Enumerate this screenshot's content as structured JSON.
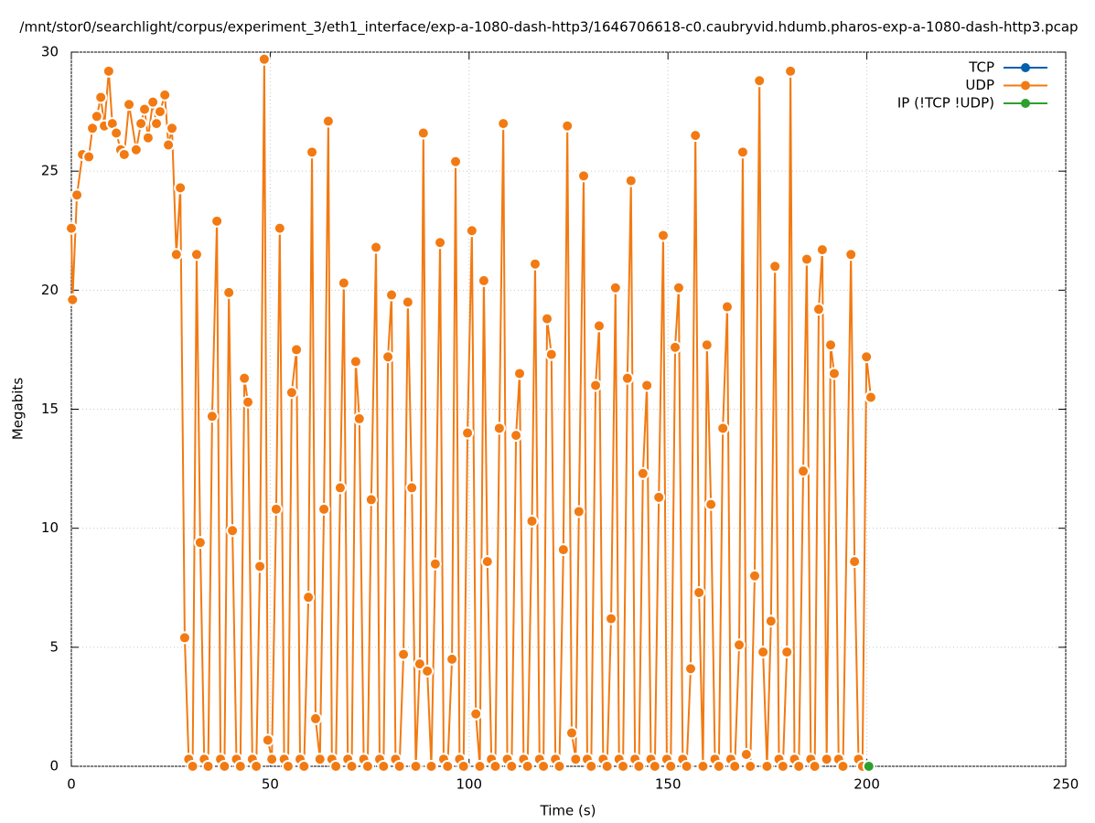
{
  "chart_data": {
    "type": "line",
    "title": "/mnt/stor0/searchlight/corpus/experiment_3/eth1_interface/exp-a-1080-dash-http3/1646706618-c0.caubryvid.hdumb.pharos-exp-a-1080-dash-http3.pcap",
    "xlabel": "Time (s)",
    "ylabel": "Megabits",
    "xlim": [
      0,
      250
    ],
    "xticks": [
      0,
      50,
      100,
      150,
      200,
      250
    ],
    "ylim": [
      0,
      30
    ],
    "yticks": [
      0,
      5,
      10,
      15,
      20,
      25,
      30
    ],
    "grid": true,
    "legend": "top-right",
    "series": [
      {
        "name": "TCP",
        "color": "#0060ad",
        "x": [],
        "values": []
      },
      {
        "name": "UDP",
        "color": "#f27a12",
        "x": [
          0,
          0.3,
          1.4,
          2.8,
          4.4,
          5.3,
          6.4,
          7.4,
          8.3,
          9.4,
          10.3,
          11.3,
          12.4,
          13.3,
          14.5,
          16.3,
          17.5,
          18.4,
          19.3,
          20.5,
          21.4,
          22.3,
          23.5,
          24.4,
          25.3,
          26.4,
          27.4,
          28.5,
          29.5,
          30.5,
          31.5,
          32.4,
          33.4,
          34.4,
          35.4,
          36.6,
          37.5,
          38.5,
          39.6,
          40.5,
          41.5,
          42.5,
          43.5,
          44.4,
          45.5,
          46.5,
          47.4,
          48.5,
          49.4,
          50.4,
          51.5,
          52.4,
          53.5,
          54.5,
          55.4,
          56.6,
          57.5,
          58.5,
          59.6,
          60.5,
          61.4,
          62.5,
          63.5,
          64.6,
          65.5,
          66.5,
          67.6,
          68.5,
          69.5,
          70.5,
          71.5,
          72.4,
          73.5,
          74.5,
          75.4,
          76.6,
          77.5,
          78.5,
          79.6,
          80.5,
          81.5,
          82.5,
          83.5,
          84.6,
          85.6,
          86.6,
          87.6,
          88.5,
          89.5,
          90.5,
          91.5,
          92.7,
          93.6,
          94.6,
          95.7,
          96.6,
          97.6,
          98.6,
          99.6,
          100.7,
          101.7,
          102.7,
          103.7,
          104.6,
          105.6,
          106.6,
          107.6,
          108.6,
          109.6,
          110.7,
          111.8,
          112.7,
          113.7,
          114.7,
          115.8,
          116.6,
          117.7,
          118.7,
          119.6,
          120.7,
          121.7,
          122.7,
          123.7,
          124.7,
          125.8,
          126.8,
          127.6,
          128.8,
          129.7,
          130.7,
          131.8,
          132.7,
          133.7,
          134.7,
          135.7,
          136.8,
          137.7,
          138.7,
          139.8,
          140.7,
          141.7,
          142.7,
          143.7,
          144.7,
          145.7,
          146.7,
          147.7,
          148.8,
          149.7,
          150.7,
          151.8,
          152.7,
          153.7,
          154.7,
          155.7,
          156.9,
          157.8,
          158.8,
          159.8,
          160.8,
          161.8,
          162.8,
          163.8,
          164.9,
          165.8,
          166.8,
          167.9,
          168.8,
          169.7,
          170.7,
          171.8,
          173,
          173.9,
          174.9,
          175.9,
          176.9,
          177.9,
          178.9,
          179.9,
          180.8,
          181.8,
          182.9,
          184,
          184.9,
          185.9,
          186.9,
          187.9,
          188.8,
          189.9,
          190.9,
          191.8,
          192.9,
          194,
          196,
          196.9,
          197.9,
          198.9,
          199.9,
          201
        ],
        "values": [
          22.6,
          19.6,
          24.0,
          25.7,
          25.6,
          26.8,
          27.3,
          28.1,
          26.9,
          29.2,
          27.0,
          26.6,
          25.9,
          25.7,
          27.8,
          25.9,
          27.0,
          27.6,
          26.4,
          27.9,
          27.0,
          27.5,
          28.2,
          26.1,
          26.8,
          21.5,
          24.3,
          5.4,
          0.3,
          0,
          21.5,
          9.4,
          0.3,
          0,
          14.7,
          22.9,
          0.3,
          0,
          19.9,
          9.9,
          0.3,
          0,
          16.3,
          15.3,
          0.3,
          0,
          8.4,
          29.7,
          1.1,
          0.3,
          10.8,
          22.6,
          0.3,
          0,
          15.7,
          17.5,
          0.3,
          0,
          7.1,
          25.8,
          2.0,
          0.3,
          10.8,
          27.1,
          0.3,
          0,
          11.7,
          20.3,
          0.3,
          0,
          17.0,
          14.6,
          0.3,
          0,
          11.2,
          21.8,
          0.3,
          0,
          17.2,
          19.8,
          0.3,
          0,
          4.7,
          19.5,
          11.7,
          0,
          4.3,
          26.6,
          4.0,
          0,
          8.5,
          22.0,
          0.3,
          0,
          4.5,
          25.4,
          0.3,
          0,
          14.0,
          22.5,
          2.2,
          0,
          20.4,
          8.6,
          0.3,
          0,
          14.2,
          27.0,
          0.3,
          0,
          13.9,
          16.5,
          0.3,
          0,
          10.3,
          21.1,
          0.3,
          0,
          18.8,
          17.3,
          0.3,
          0,
          9.1,
          26.9,
          1.4,
          0.3,
          10.7,
          24.8,
          0.3,
          0,
          16.0,
          18.5,
          0.3,
          0,
          6.2,
          20.1,
          0.3,
          0,
          16.3,
          24.6,
          0.3,
          0,
          12.3,
          16.0,
          0.3,
          0,
          11.3,
          22.3,
          0.3,
          0,
          17.6,
          20.1,
          0.3,
          0,
          4.1,
          26.5,
          7.3,
          0,
          17.7,
          11.0,
          0.3,
          0,
          14.2,
          19.3,
          0.3,
          0,
          5.1,
          25.8,
          0.5,
          0,
          8.0,
          28.8,
          4.8,
          0,
          6.1,
          21.0,
          0.3,
          0,
          4.8,
          29.2,
          0.3,
          0,
          12.4,
          21.3,
          0.3,
          0,
          19.2,
          21.7,
          0.3,
          17.7,
          16.5,
          0.3,
          0,
          21.5,
          8.6,
          0.3,
          0,
          17.2,
          15.5
        ]
      },
      {
        "name": "IP (!TCP  !UDP)",
        "color": "#2ca02c",
        "x": [
          200.5
        ],
        "values": [
          0
        ]
      }
    ]
  }
}
